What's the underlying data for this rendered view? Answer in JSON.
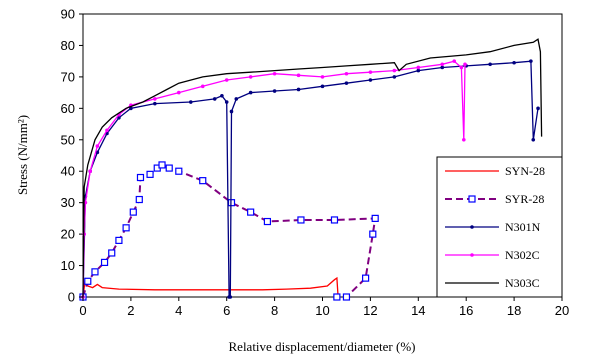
{
  "chart_data": {
    "type": "line",
    "xlabel": "Relative displacement/diameter (%)",
    "ylabel": "Stress (N/mm²)",
    "xlim": [
      0,
      20
    ],
    "ylim": [
      0,
      90
    ],
    "xticks": [
      0,
      2,
      4,
      6,
      8,
      10,
      12,
      14,
      16,
      18,
      20
    ],
    "yticks": [
      0,
      10,
      20,
      30,
      40,
      50,
      60,
      70,
      80,
      90
    ],
    "grid": false,
    "legend_position": "bottom-right",
    "series": [
      {
        "name": "SYN-28",
        "color": "#ff0000",
        "marker": "none",
        "dash": "solid",
        "points": [
          [
            0,
            0
          ],
          [
            0.1,
            6
          ],
          [
            0.2,
            3.5
          ],
          [
            0.4,
            3
          ],
          [
            0.6,
            4
          ],
          [
            0.8,
            3
          ],
          [
            1.5,
            2.5
          ],
          [
            3,
            2.3
          ],
          [
            6,
            2.3
          ],
          [
            7.5,
            2.3
          ],
          [
            8.5,
            2.5
          ],
          [
            9.5,
            2.8
          ],
          [
            10.2,
            3.5
          ],
          [
            10.5,
            5.5
          ],
          [
            10.6,
            6
          ],
          [
            10.65,
            0
          ]
        ]
      },
      {
        "name": "SYR-28",
        "color": "#800080",
        "marker": "square",
        "marker_color": "#0000ff",
        "dash": "dashed",
        "points": [
          [
            0,
            0
          ],
          [
            0.2,
            5
          ],
          [
            0.5,
            8
          ],
          [
            0.9,
            11
          ],
          [
            1.2,
            14
          ],
          [
            1.5,
            18
          ],
          [
            1.8,
            22
          ],
          [
            2.1,
            27
          ],
          [
            2.35,
            31
          ],
          [
            2.4,
            38
          ],
          [
            2.8,
            39
          ],
          [
            3.1,
            41
          ],
          [
            3.3,
            42
          ],
          [
            3.6,
            41
          ],
          [
            4,
            40
          ],
          [
            5,
            37
          ],
          [
            6.2,
            30
          ],
          [
            7,
            27
          ],
          [
            7.7,
            24
          ],
          [
            9.1,
            24.5
          ],
          [
            10.5,
            24.5
          ],
          [
            12.2,
            25
          ],
          [
            12.1,
            20
          ],
          [
            11.8,
            6
          ],
          [
            11,
            0
          ],
          [
            10.6,
            0
          ]
        ]
      },
      {
        "name": "N301N",
        "color": "#000080",
        "marker": "dot",
        "dash": "solid",
        "points": [
          [
            0,
            0
          ],
          [
            0.1,
            32
          ],
          [
            0.3,
            40
          ],
          [
            0.6,
            46
          ],
          [
            1,
            52
          ],
          [
            1.5,
            57
          ],
          [
            2,
            60
          ],
          [
            3,
            61.5
          ],
          [
            4.5,
            62
          ],
          [
            5.5,
            63
          ],
          [
            5.8,
            64
          ],
          [
            6,
            62
          ],
          [
            6.1,
            0
          ],
          [
            6.15,
            0
          ],
          [
            6.2,
            59
          ],
          [
            6.4,
            63
          ],
          [
            7,
            65
          ],
          [
            8,
            65.5
          ],
          [
            9,
            66
          ],
          [
            10,
            67
          ],
          [
            11,
            68
          ],
          [
            12,
            69
          ],
          [
            13,
            70
          ],
          [
            14,
            72
          ],
          [
            15,
            73
          ],
          [
            16,
            73.5
          ],
          [
            17,
            74
          ],
          [
            18,
            74.5
          ],
          [
            18.7,
            75
          ],
          [
            18.8,
            50
          ],
          [
            19,
            60
          ]
        ]
      },
      {
        "name": "N302C",
        "color": "#ff00ff",
        "marker": "dot",
        "dash": "solid",
        "points": [
          [
            0,
            0
          ],
          [
            0.05,
            20
          ],
          [
            0.1,
            30
          ],
          [
            0.3,
            40
          ],
          [
            0.6,
            48
          ],
          [
            1,
            53
          ],
          [
            1.5,
            58
          ],
          [
            2,
            61
          ],
          [
            3,
            63
          ],
          [
            4,
            65
          ],
          [
            5,
            67
          ],
          [
            6,
            69
          ],
          [
            7,
            70
          ],
          [
            8,
            71
          ],
          [
            9,
            70.5
          ],
          [
            10,
            70
          ],
          [
            11,
            71
          ],
          [
            12,
            71.5
          ],
          [
            13,
            72
          ],
          [
            14,
            73
          ],
          [
            15,
            74
          ],
          [
            15.5,
            75
          ],
          [
            15.8,
            73
          ],
          [
            15.9,
            50
          ],
          [
            15.95,
            74
          ]
        ]
      },
      {
        "name": "N303C",
        "color": "#000000",
        "marker": "none",
        "dash": "solid",
        "points": [
          [
            0,
            0
          ],
          [
            0.05,
            35
          ],
          [
            0.2,
            42
          ],
          [
            0.5,
            50
          ],
          [
            0.8,
            54
          ],
          [
            1.2,
            57
          ],
          [
            1.8,
            60
          ],
          [
            2.5,
            62
          ],
          [
            3,
            64
          ],
          [
            3.5,
            66
          ],
          [
            4,
            68
          ],
          [
            5,
            70
          ],
          [
            6,
            71
          ],
          [
            7,
            71.5
          ],
          [
            8,
            72
          ],
          [
            9,
            72.5
          ],
          [
            10,
            73
          ],
          [
            11,
            73.5
          ],
          [
            12,
            74
          ],
          [
            13,
            74.5
          ],
          [
            13.2,
            72
          ],
          [
            13.5,
            74
          ],
          [
            14.5,
            76
          ],
          [
            16,
            77
          ],
          [
            17,
            78
          ],
          [
            18,
            80
          ],
          [
            18.8,
            81
          ],
          [
            19,
            82
          ],
          [
            19.1,
            78
          ],
          [
            19.15,
            51
          ]
        ]
      }
    ]
  }
}
